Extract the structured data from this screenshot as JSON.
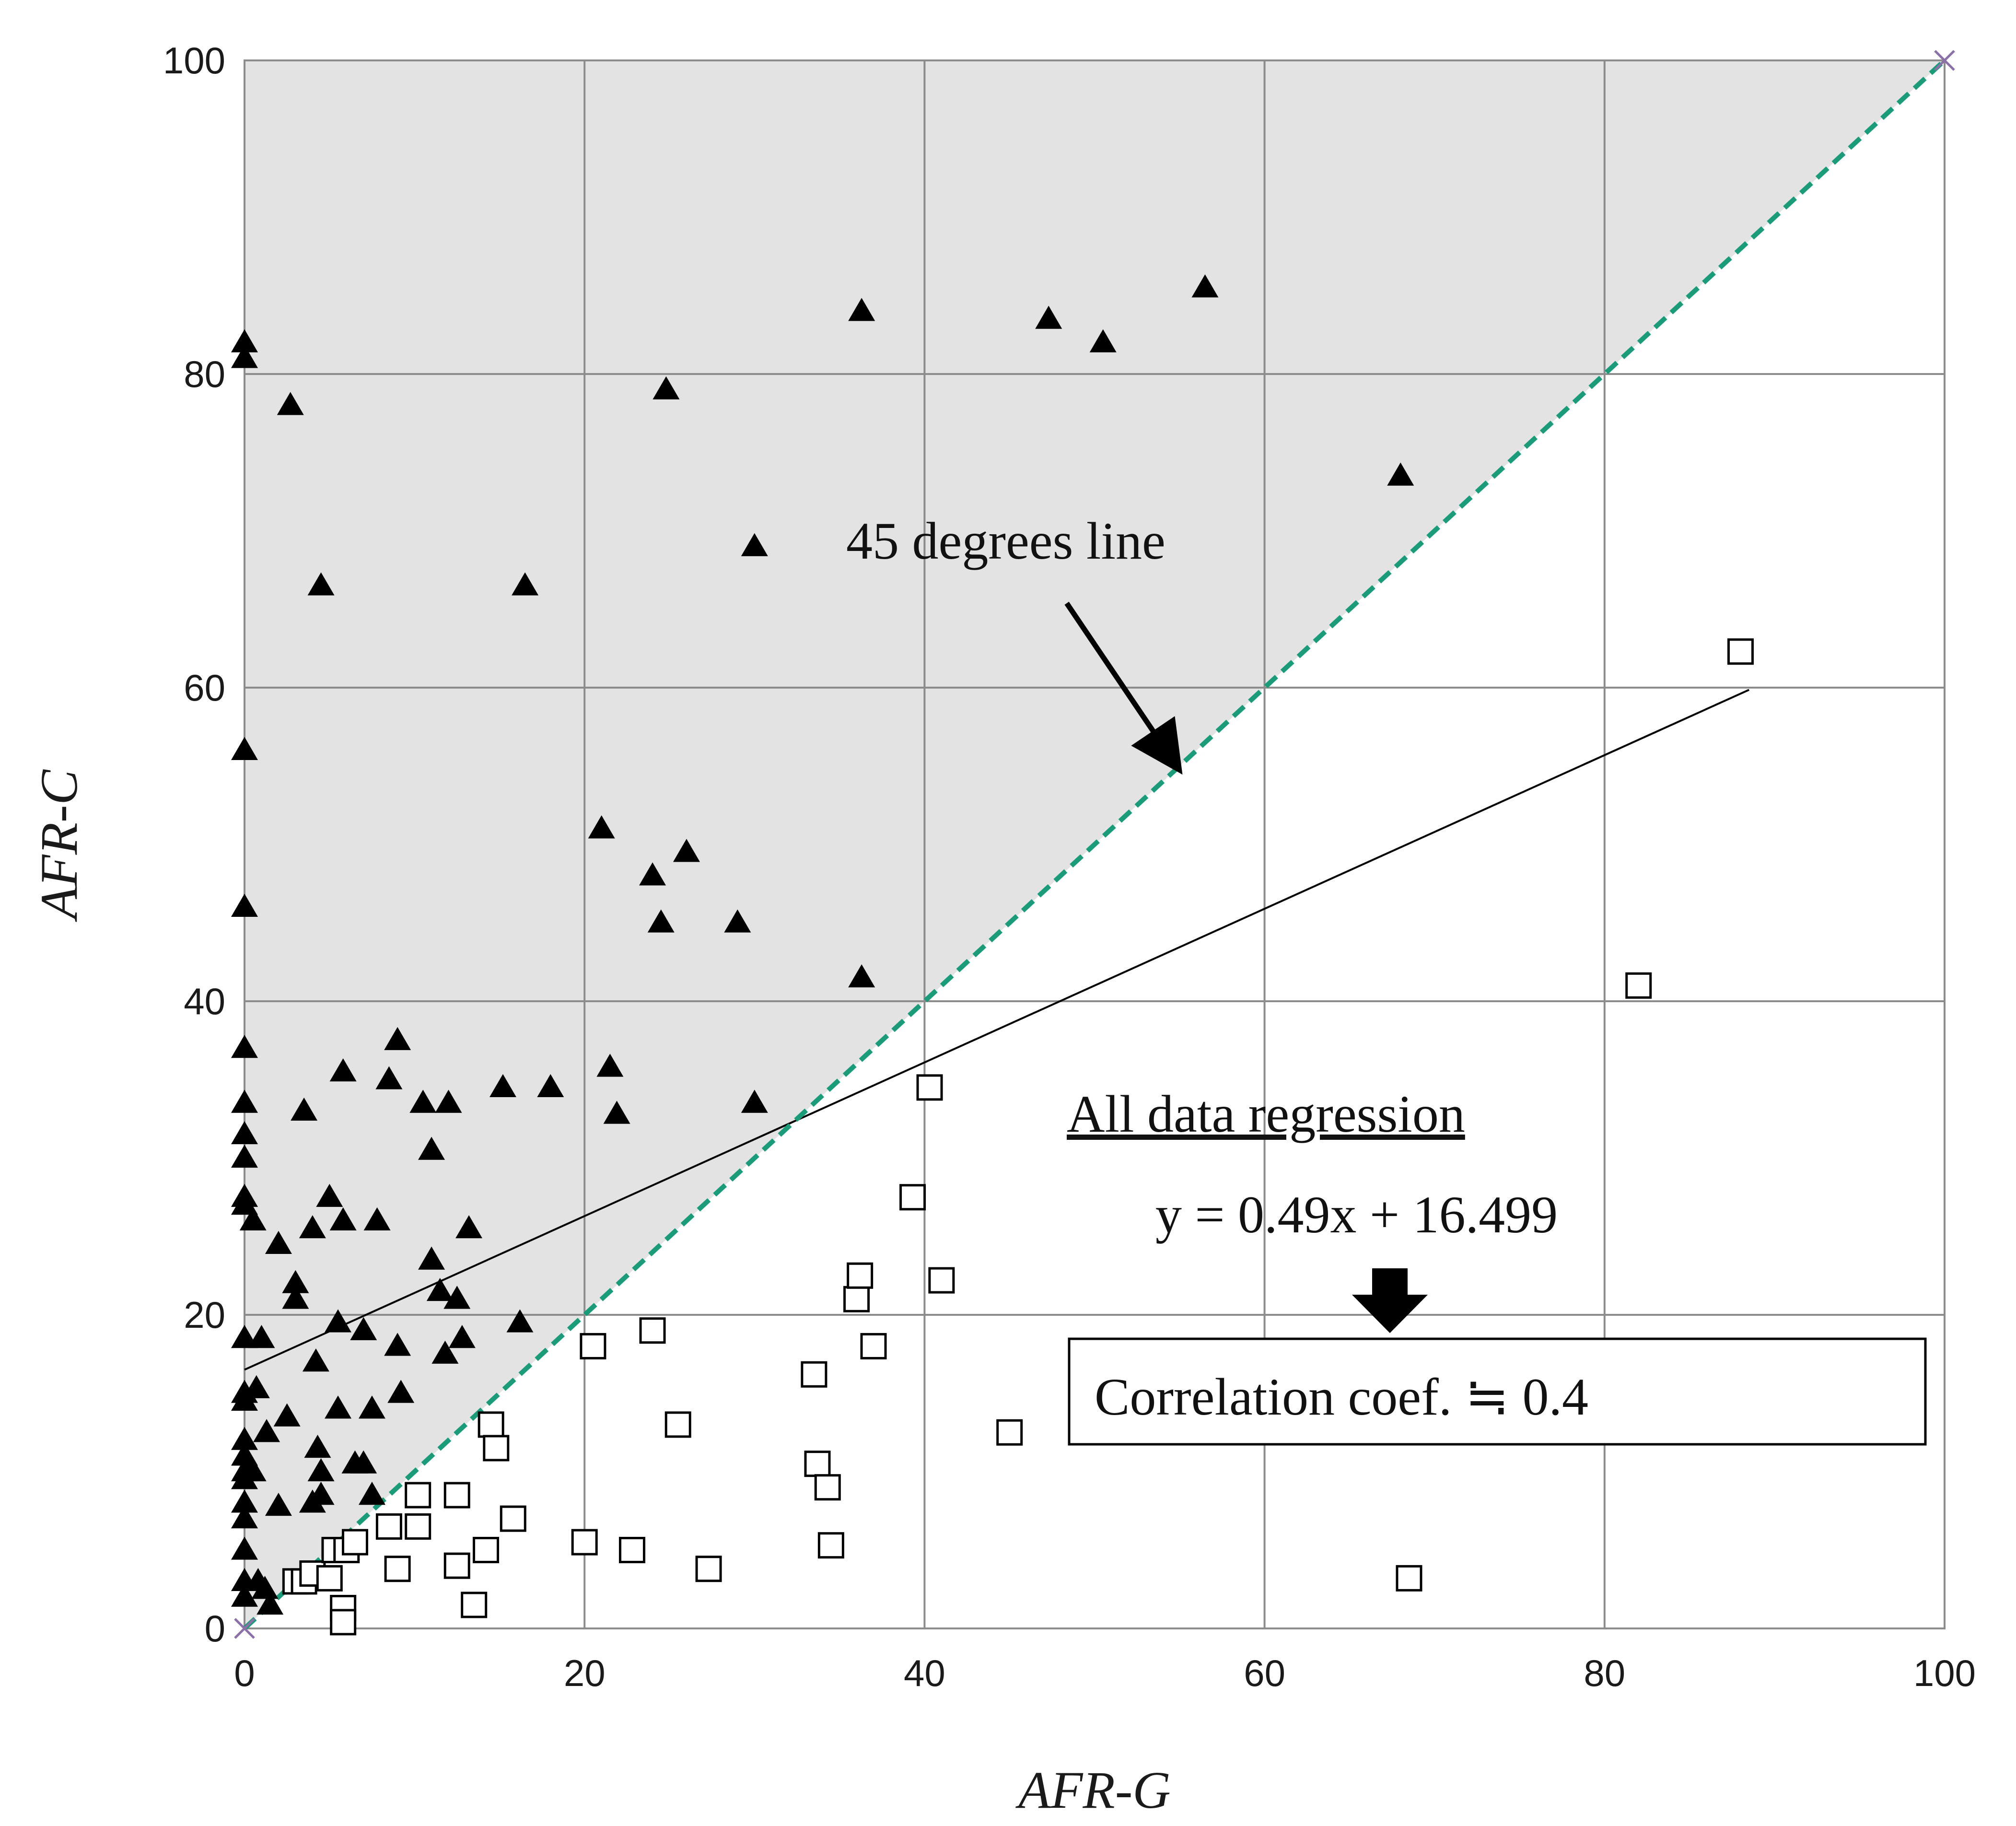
{
  "chart_data": {
    "type": "scatter",
    "title": "",
    "xlabel": "AFR-G",
    "ylabel": "AFR-C",
    "xlim": [
      0,
      100
    ],
    "ylim": [
      0,
      100
    ],
    "xticks": [
      "0",
      "20",
      "40",
      "60",
      "80",
      "100"
    ],
    "yticks": [
      "0",
      "20",
      "40",
      "60",
      "80",
      "100"
    ],
    "grid": true,
    "colors": {
      "shaded_region": "#e3e3e3",
      "diagonal_line": "#1a9c7a",
      "regression_line": "#000000",
      "markers": "#000000",
      "grid": "#8c8c8c"
    },
    "series": [
      {
        "marker": "filled-triangle",
        "points": [
          [
            0,
            82
          ],
          [
            0,
            81
          ],
          [
            0,
            56
          ],
          [
            0,
            46
          ],
          [
            0,
            37
          ],
          [
            0,
            33.5
          ],
          [
            0,
            31.5
          ],
          [
            0,
            30
          ],
          [
            0,
            27.5
          ],
          [
            0,
            27
          ],
          [
            0,
            18.5
          ],
          [
            0,
            15
          ],
          [
            0,
            14.5
          ],
          [
            0,
            12
          ],
          [
            0,
            11
          ],
          [
            0,
            10
          ],
          [
            0,
            9.5
          ],
          [
            0,
            8
          ],
          [
            0,
            7
          ],
          [
            0,
            5
          ],
          [
            0,
            3
          ],
          [
            0,
            2
          ],
          [
            0.5,
            26
          ],
          [
            0.7,
            15.3
          ],
          [
            0.5,
            10
          ],
          [
            0.8,
            3
          ],
          [
            1,
            18.5
          ],
          [
            1.2,
            2.5
          ],
          [
            1.5,
            1.5
          ],
          [
            1.3,
            12.5
          ],
          [
            2,
            24.5
          ],
          [
            2,
            7.8
          ],
          [
            2.5,
            13.5
          ],
          [
            2.7,
            78
          ],
          [
            3,
            22
          ],
          [
            3,
            21
          ],
          [
            3.5,
            33
          ],
          [
            4,
            25.5
          ],
          [
            4,
            8
          ],
          [
            4.5,
            66.5
          ],
          [
            4.2,
            17
          ],
          [
            4.3,
            11.5
          ],
          [
            4.5,
            10
          ],
          [
            4.5,
            8.5
          ],
          [
            5,
            27.5
          ],
          [
            5.5,
            19.5
          ],
          [
            5.5,
            14
          ],
          [
            5.8,
            35.5
          ],
          [
            5.8,
            26
          ],
          [
            6,
            5
          ],
          [
            6.5,
            10.5
          ],
          [
            7,
            19
          ],
          [
            7,
            10.5
          ],
          [
            7.5,
            8.5
          ],
          [
            7.5,
            14
          ],
          [
            7.8,
            26
          ],
          [
            8.5,
            35
          ],
          [
            9,
            37.5
          ],
          [
            9,
            18
          ],
          [
            9.2,
            15
          ],
          [
            10.5,
            33.5
          ],
          [
            11,
            30.5
          ],
          [
            11,
            23.5
          ],
          [
            11.5,
            21.5
          ],
          [
            11.8,
            17.5
          ],
          [
            12,
            33.5
          ],
          [
            12.5,
            21
          ],
          [
            12.8,
            18.5
          ],
          [
            13.2,
            25.5
          ],
          [
            15.2,
            34.5
          ],
          [
            16.2,
            19.5
          ],
          [
            16.5,
            66.5
          ],
          [
            18,
            34.5
          ],
          [
            21,
            51
          ],
          [
            21.5,
            35.8
          ],
          [
            21.9,
            32.8
          ],
          [
            24,
            48
          ],
          [
            24.5,
            45
          ],
          [
            24.8,
            79
          ],
          [
            26,
            49.5
          ],
          [
            29,
            45
          ],
          [
            30,
            69
          ],
          [
            30,
            33.5
          ],
          [
            36.3,
            84
          ],
          [
            36.3,
            41.5
          ],
          [
            47.3,
            83.5
          ],
          [
            50.5,
            82
          ],
          [
            56.5,
            85.5
          ],
          [
            68,
            73.5
          ]
        ]
      },
      {
        "marker": "open-square",
        "points": [
          [
            3,
            3
          ],
          [
            3.5,
            3
          ],
          [
            4,
            3.5
          ],
          [
            5,
            3.2
          ],
          [
            5.3,
            5
          ],
          [
            5.8,
            1.3
          ],
          [
            5.8,
            0.4
          ],
          [
            6,
            5
          ],
          [
            6.5,
            5.5
          ],
          [
            8.5,
            6.5
          ],
          [
            9,
            3.8
          ],
          [
            10.2,
            8.5
          ],
          [
            10.2,
            6.5
          ],
          [
            12.5,
            4
          ],
          [
            12.5,
            8.5
          ],
          [
            13.5,
            1.5
          ],
          [
            14.2,
            5
          ],
          [
            14.5,
            13
          ],
          [
            14.8,
            11.5
          ],
          [
            15.8,
            7
          ],
          [
            20,
            5.5
          ],
          [
            20.5,
            18
          ],
          [
            22.8,
            5
          ],
          [
            24,
            19
          ],
          [
            25.5,
            13
          ],
          [
            27.3,
            3.8
          ],
          [
            33.5,
            16.2
          ],
          [
            33.7,
            10.5
          ],
          [
            34.3,
            9
          ],
          [
            34.5,
            5.3
          ],
          [
            36,
            21
          ],
          [
            36.2,
            22.5
          ],
          [
            37,
            18
          ],
          [
            39.3,
            27.5
          ],
          [
            40.3,
            34.5
          ],
          [
            41,
            22.2
          ],
          [
            45,
            12.5
          ],
          [
            68.5,
            3.2
          ],
          [
            82,
            41
          ],
          [
            88,
            62.3
          ]
        ]
      }
    ],
    "lines": [
      {
        "name": "45 degrees line",
        "style": "dashed",
        "x": [
          0,
          100
        ],
        "y": [
          0,
          100
        ]
      },
      {
        "name": "All data regression",
        "style": "solid",
        "x": [
          0,
          88.5
        ],
        "y": [
          16.499,
          59.86
        ]
      }
    ],
    "annotations": {
      "diagonal_label": "45 degrees line",
      "regression_title": "All data regression",
      "regression_equation": "y = 0.49x + 16.499",
      "correlation_box": "Correlation coef. ≒ 0.4"
    }
  }
}
